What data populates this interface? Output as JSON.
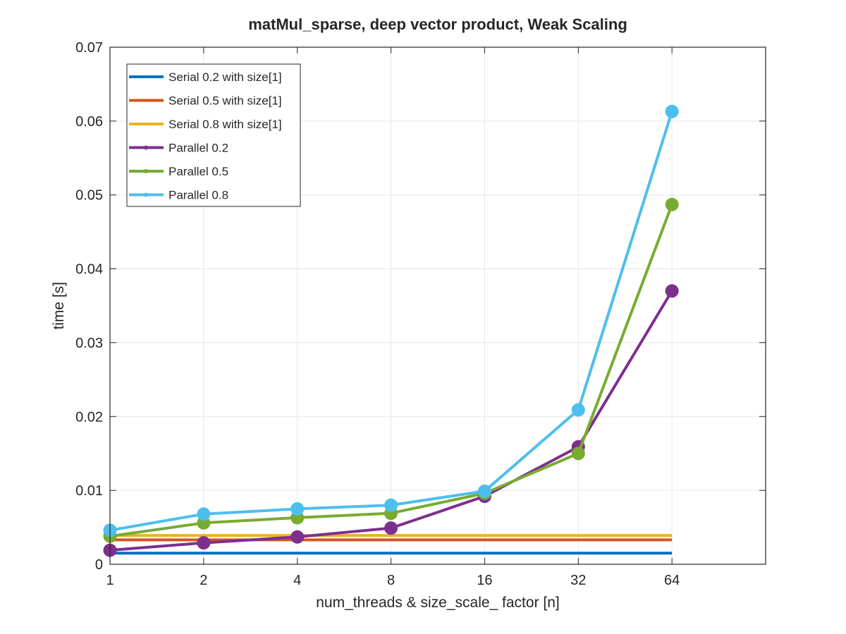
{
  "chart_data": {
    "type": "line",
    "title": "matMul_sparse, deep vector product, Weak Scaling",
    "xlabel": "num_threads & size_scale_ factor [n]",
    "ylabel": "time [s]",
    "x_scale": "log2",
    "categories": [
      "1",
      "2",
      "4",
      "8",
      "16",
      "32",
      "64"
    ],
    "x": [
      1,
      2,
      4,
      8,
      16,
      32,
      64
    ],
    "xlim": [
      1,
      128
    ],
    "ylim": [
      0,
      0.07
    ],
    "yticks": [
      "0",
      "0.01",
      "0.02",
      "0.03",
      "0.04",
      "0.05",
      "0.06",
      "0.07"
    ],
    "ytick_values": [
      0,
      0.01,
      0.02,
      0.03,
      0.04,
      0.05,
      0.06,
      0.07
    ],
    "grid": true,
    "legend_position": "top-left",
    "series": [
      {
        "name": "Serial 0.2 with size[1]",
        "color": "#0072BD",
        "marker": "none",
        "values": [
          0.0015,
          0.0015,
          0.0015,
          0.0015,
          0.0015,
          0.0015,
          0.0015
        ]
      },
      {
        "name": "Serial 0.5 with size[1]",
        "color": "#D95319",
        "marker": "none",
        "values": [
          0.0033,
          0.0033,
          0.0033,
          0.0033,
          0.0033,
          0.0033,
          0.0033
        ]
      },
      {
        "name": "Serial 0.8 with size[1]",
        "color": "#EDB120",
        "marker": "none",
        "values": [
          0.0039,
          0.0039,
          0.0039,
          0.0039,
          0.0039,
          0.0039,
          0.0039
        ]
      },
      {
        "name": "Parallel 0.2",
        "color": "#7E2F8E",
        "marker": "circle",
        "values": [
          0.0019,
          0.0029,
          0.0037,
          0.0049,
          0.0092,
          0.0159,
          0.037
        ]
      },
      {
        "name": "Parallel 0.5",
        "color": "#77AC30",
        "marker": "circle",
        "values": [
          0.0038,
          0.0056,
          0.0063,
          0.0069,
          0.0096,
          0.015,
          0.0487
        ]
      },
      {
        "name": "Parallel 0.8",
        "color": "#4DBEEE",
        "marker": "circle",
        "values": [
          0.0046,
          0.0068,
          0.0075,
          0.008,
          0.0099,
          0.0209,
          0.0613
        ]
      }
    ]
  }
}
